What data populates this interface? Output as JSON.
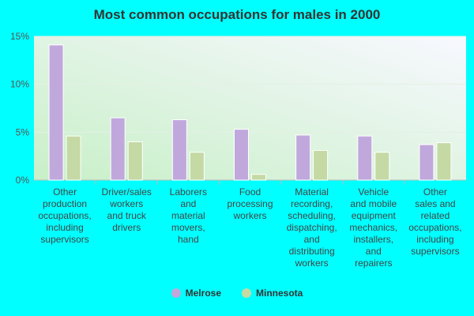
{
  "chart_data": {
    "type": "bar",
    "title": "Most common occupations for males in 2000",
    "xlabel": "",
    "ylabel": "",
    "ylim": [
      0,
      15
    ],
    "yticks": [
      0,
      5,
      10,
      15
    ],
    "ytick_labels": [
      "0%",
      "5%",
      "10%",
      "15%"
    ],
    "grid": true,
    "legend_position": "bottom",
    "categories": [
      "Other production occupations, including supervisors",
      "Driver/sales workers and truck drivers",
      "Laborers and material movers, hand",
      "Food processing workers",
      "Material recording, scheduling, dispatching, and distributing workers",
      "Vehicle and mobile equipment mechanics, installers, and repairers",
      "Other sales and related occupations, including supervisors"
    ],
    "category_lines": [
      [
        "Other",
        "production",
        "occupations,",
        "including",
        "supervisors"
      ],
      [
        "Driver/sales",
        "workers",
        "and truck",
        "drivers"
      ],
      [
        "Laborers",
        "and",
        "material",
        "movers,",
        "hand"
      ],
      [
        "Food",
        "processing",
        "workers"
      ],
      [
        "Material",
        "recording,",
        "scheduling,",
        "dispatching,",
        "and",
        "distributing",
        "workers"
      ],
      [
        "Vehicle",
        "and mobile",
        "equipment",
        "mechanics,",
        "installers,",
        "and",
        "repairers"
      ],
      [
        "Other",
        "sales and",
        "related",
        "occupations,",
        "including",
        "supervisors"
      ]
    ],
    "series": [
      {
        "name": "Melrose",
        "color": "#c0a8dc",
        "values": [
          14.1,
          6.5,
          6.3,
          5.3,
          4.7,
          4.6,
          3.7
        ]
      },
      {
        "name": "Minnesota",
        "color": "#c4d9a4",
        "values": [
          4.6,
          4.0,
          2.9,
          0.6,
          3.1,
          2.9,
          3.9
        ]
      }
    ]
  }
}
